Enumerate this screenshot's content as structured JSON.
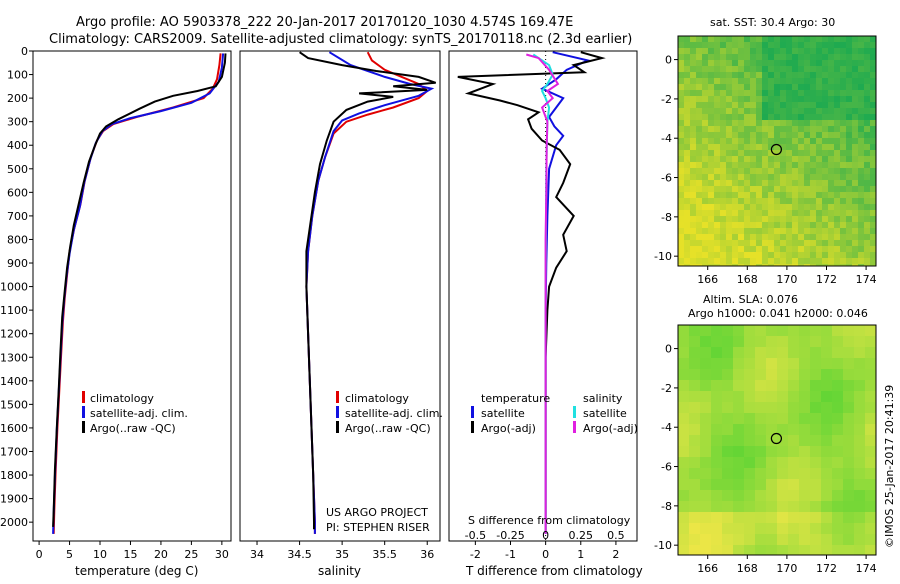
{
  "header": {
    "line1": "Argo profile: AO 5903378_222 20-Jan-2017 20170120_1030 4.574S 169.47E",
    "line2": "Climatology: CARS2009. Satellite-adjusted climatology: synTS_20170118.nc (2.3d earlier)"
  },
  "colors": {
    "clim": "#e00000",
    "sat": "#1010e0",
    "argo": "#000000",
    "sat_sal": "#20e0e0",
    "argo_sal": "#e020e0"
  },
  "chart_data": [
    {
      "type": "line",
      "id": "temperature",
      "xlabel": "temperature (deg C)",
      "ylabel": "depth",
      "xlim": [
        -1,
        31.5
      ],
      "ylim": [
        2080,
        0
      ],
      "xticks": [
        0,
        5,
        10,
        15,
        20,
        25,
        30
      ],
      "yticks": [
        0,
        100,
        200,
        300,
        400,
        500,
        600,
        700,
        800,
        900,
        1000,
        1100,
        1200,
        1300,
        1400,
        1500,
        1600,
        1700,
        1800,
        1900,
        2000
      ],
      "legend": [
        "climatology",
        "satellite-adj. clim.",
        "Argo(..raw -QC)"
      ],
      "series": [
        {
          "name": "climatology",
          "color": "clim",
          "points": [
            [
              29.8,
              10
            ],
            [
              29.6,
              60
            ],
            [
              29.2,
              120
            ],
            [
              28.5,
              160
            ],
            [
              27,
              200
            ],
            [
              22,
              240
            ],
            [
              16,
              280
            ],
            [
              12.2,
              310
            ],
            [
              10.5,
              340
            ],
            [
              9.5,
              380
            ],
            [
              8.5,
              450
            ],
            [
              7.5,
              550
            ],
            [
              6.8,
              650
            ],
            [
              5.8,
              750
            ],
            [
              5,
              850
            ],
            [
              4.6,
              950
            ],
            [
              4.2,
              1050
            ],
            [
              3.9,
              1150
            ],
            [
              3.6,
              1300
            ],
            [
              3.3,
              1450
            ],
            [
              3,
              1600
            ],
            [
              2.7,
              1800
            ],
            [
              2.5,
              1950
            ],
            [
              2.4,
              2050
            ]
          ]
        },
        {
          "name": "satellite-adj. clim.",
          "color": "sat",
          "points": [
            [
              30.2,
              10
            ],
            [
              30,
              70
            ],
            [
              29.5,
              130
            ],
            [
              28,
              180
            ],
            [
              25,
              220
            ],
            [
              20,
              255
            ],
            [
              15,
              285
            ],
            [
              12,
              310
            ],
            [
              10.4,
              340
            ],
            [
              9.3,
              390
            ],
            [
              8.4,
              460
            ],
            [
              7.4,
              560
            ],
            [
              6.7,
              660
            ],
            [
              5.7,
              760
            ],
            [
              5,
              860
            ],
            [
              4.5,
              960
            ],
            [
              4.1,
              1060
            ],
            [
              3.8,
              1160
            ],
            [
              3.5,
              1310
            ],
            [
              3.2,
              1460
            ],
            [
              2.9,
              1610
            ],
            [
              2.6,
              1810
            ],
            [
              2.4,
              1960
            ],
            [
              2.3,
              2050
            ]
          ]
        },
        {
          "name": "Argo(..raw -QC)",
          "color": "argo",
          "points": [
            [
              30.6,
              10
            ],
            [
              30.5,
              50
            ],
            [
              30,
              110
            ],
            [
              29,
              150
            ],
            [
              26,
              170
            ],
            [
              22,
              190
            ],
            [
              19,
              215
            ],
            [
              16.5,
              245
            ],
            [
              13,
              290
            ],
            [
              11,
              320
            ],
            [
              10,
              350
            ],
            [
              9.2,
              400
            ],
            [
              8.2,
              470
            ],
            [
              7.3,
              560
            ],
            [
              6.5,
              650
            ],
            [
              5.7,
              740
            ],
            [
              5.1,
              830
            ],
            [
              4.6,
              920
            ],
            [
              4.2,
              1020
            ],
            [
              3.8,
              1130
            ],
            [
              3.5,
              1280
            ],
            [
              3.2,
              1450
            ],
            [
              2.9,
              1600
            ],
            [
              2.6,
              1780
            ],
            [
              2.4,
              1950
            ],
            [
              2.3,
              2020
            ]
          ]
        }
      ]
    },
    {
      "type": "line",
      "id": "salinity",
      "xlabel": "salinity",
      "xlim": [
        33.8,
        36.15
      ],
      "ylim": [
        2080,
        0
      ],
      "xticks": [
        34,
        34.5,
        35,
        35.5,
        36
      ],
      "xtick_labels": [
        "34",
        "34.5",
        "35",
        "35.5",
        "36"
      ],
      "legend": [
        "climatology",
        "satellite-adj. clim.",
        "Argo(..raw -QC)"
      ],
      "credit1": "US ARGO PROJECT",
      "credit2": "PI: STEPHEN RISER",
      "series": [
        {
          "name": "climatology",
          "color": "clim",
          "points": [
            [
              35.3,
              5
            ],
            [
              35.35,
              40
            ],
            [
              35.5,
              80
            ],
            [
              35.7,
              110
            ],
            [
              35.9,
              140
            ],
            [
              36,
              170
            ],
            [
              35.9,
              200
            ],
            [
              35.6,
              240
            ],
            [
              35.3,
              270
            ],
            [
              35.05,
              300
            ],
            [
              34.9,
              350
            ],
            [
              34.8,
              450
            ],
            [
              34.72,
              550
            ],
            [
              34.65,
              700
            ],
            [
              34.6,
              850
            ],
            [
              34.58,
              1000
            ],
            [
              34.6,
              1200
            ],
            [
              34.62,
              1400
            ],
            [
              34.64,
              1600
            ],
            [
              34.66,
              1800
            ],
            [
              34.68,
              2000
            ],
            [
              34.68,
              2050
            ]
          ]
        },
        {
          "name": "satellite-adj. clim.",
          "color": "sat",
          "points": [
            [
              34.85,
              5
            ],
            [
              35.1,
              60
            ],
            [
              35.5,
              110
            ],
            [
              35.8,
              140
            ],
            [
              36.05,
              160
            ],
            [
              35.9,
              190
            ],
            [
              35.5,
              230
            ],
            [
              35.2,
              265
            ],
            [
              35,
              295
            ],
            [
              34.9,
              340
            ],
            [
              34.8,
              450
            ],
            [
              34.72,
              550
            ],
            [
              34.65,
              700
            ],
            [
              34.6,
              850
            ],
            [
              34.58,
              1000
            ],
            [
              34.6,
              1200
            ],
            [
              34.62,
              1400
            ],
            [
              34.64,
              1600
            ],
            [
              34.66,
              1800
            ],
            [
              34.68,
              2000
            ],
            [
              34.68,
              2050
            ]
          ]
        },
        {
          "name": "Argo(..raw -QC)",
          "color": "argo",
          "points": [
            [
              34.5,
              5
            ],
            [
              34.6,
              30
            ],
            [
              35,
              60
            ],
            [
              35.4,
              85
            ],
            [
              35.9,
              110
            ],
            [
              36.1,
              135
            ],
            [
              35.6,
              150
            ],
            [
              36,
              165
            ],
            [
              35.2,
              180
            ],
            [
              35.6,
              195
            ],
            [
              35.3,
              215
            ],
            [
              35.05,
              250
            ],
            [
              34.9,
              300
            ],
            [
              34.82,
              380
            ],
            [
              34.74,
              480
            ],
            [
              34.68,
              600
            ],
            [
              34.62,
              750
            ],
            [
              34.58,
              850
            ],
            [
              34.58,
              1000
            ],
            [
              34.6,
              1200
            ],
            [
              34.62,
              1400
            ],
            [
              34.64,
              1600
            ],
            [
              34.66,
              1800
            ],
            [
              34.67,
              2000
            ],
            [
              34.67,
              2030
            ]
          ]
        }
      ]
    },
    {
      "type": "line",
      "id": "difference",
      "xlabel": "T difference from climatology",
      "xlabel_top": "S difference from climatology",
      "xlim": [
        -2.75,
        2.6
      ],
      "ylim": [
        2080,
        0
      ],
      "xticks": [
        -2,
        -1,
        0,
        1,
        2
      ],
      "xticks_s": [
        [
          -0.5,
          "-0.5"
        ],
        [
          -0.25,
          "-0.25"
        ],
        [
          0,
          "0"
        ],
        [
          0.25,
          "0.25"
        ],
        [
          0.5,
          "0.5"
        ]
      ],
      "legend_t_title": "temperature",
      "legend_s_title": "salinity",
      "legend_t": [
        "satellite",
        "Argo(-adj)"
      ],
      "legend_s": [
        "satellite",
        "Argo(-adj)"
      ],
      "series": [
        {
          "name": "T satellite",
          "color": "sat",
          "points": [
            [
              0.2,
              5
            ],
            [
              1.2,
              40
            ],
            [
              0.6,
              80
            ],
            [
              0.3,
              120
            ],
            [
              -0.1,
              160
            ],
            [
              0.5,
              200
            ],
            [
              0.3,
              240
            ],
            [
              0.1,
              280
            ],
            [
              0.25,
              320
            ],
            [
              0.5,
              360
            ],
            [
              0.3,
              400
            ],
            [
              0.1,
              500
            ],
            [
              0.05,
              700
            ],
            [
              0.02,
              900
            ],
            [
              0,
              1100
            ],
            [
              0,
              1300
            ],
            [
              0,
              1600
            ],
            [
              0,
              2000
            ],
            [
              0,
              2050
            ]
          ]
        },
        {
          "name": "T Argo(-adj)",
          "color": "argo",
          "points": [
            [
              1.0,
              5
            ],
            [
              1.6,
              30
            ],
            [
              0.8,
              60
            ],
            [
              1.1,
              90
            ],
            [
              -2.5,
              110
            ],
            [
              -1.5,
              140
            ],
            [
              -2.2,
              180
            ],
            [
              -1.3,
              210
            ],
            [
              -0.8,
              230
            ],
            [
              -0.2,
              260
            ],
            [
              -0.5,
              290
            ],
            [
              -0.4,
              330
            ],
            [
              -0.1,
              380
            ],
            [
              0.4,
              420
            ],
            [
              0.7,
              480
            ],
            [
              0.5,
              560
            ],
            [
              0.3,
              620
            ],
            [
              0.8,
              700
            ],
            [
              0.5,
              780
            ],
            [
              0.6,
              850
            ],
            [
              0.3,
              920
            ],
            [
              0.1,
              1000
            ],
            [
              0.05,
              1100
            ],
            [
              0,
              1300
            ],
            [
              0,
              1600
            ],
            [
              0,
              2000
            ],
            [
              0,
              2050
            ]
          ]
        },
        {
          "name": "S satellite",
          "color": "sat_sal",
          "points": [
            [
              -0.35,
              15
            ],
            [
              0.1,
              60
            ],
            [
              0.2,
              100
            ],
            [
              0.05,
              140
            ],
            [
              -0.1,
              170
            ],
            [
              0,
              200
            ],
            [
              0.1,
              240
            ],
            [
              0.05,
              300
            ],
            [
              0.02,
              500
            ],
            [
              0,
              1000
            ],
            [
              0,
              2000
            ],
            [
              0,
              2050
            ]
          ]
        },
        {
          "name": "S Argo(-adj)",
          "color": "argo_sal",
          "points": [
            [
              -0.55,
              15
            ],
            [
              -0.2,
              30
            ],
            [
              0.1,
              80
            ],
            [
              0.35,
              140
            ],
            [
              0.05,
              170
            ],
            [
              0.2,
              200
            ],
            [
              -0.1,
              240
            ],
            [
              0.05,
              300
            ],
            [
              0.03,
              400
            ],
            [
              0.02,
              600
            ],
            [
              0,
              800
            ],
            [
              0,
              1200
            ],
            [
              0,
              2000
            ],
            [
              0,
              2050
            ]
          ]
        }
      ]
    },
    {
      "type": "heatmap",
      "id": "sst_map",
      "title": "sat. SST: 30.4 Argo: 30",
      "xlim": [
        164.5,
        174.5
      ],
      "ylim": [
        -10.5,
        1.2
      ],
      "xticks": [
        166,
        168,
        170,
        172,
        174
      ],
      "yticks": [
        0,
        -2,
        -4,
        -6,
        -8,
        -10
      ],
      "marker": [
        169.47,
        -4.574
      ]
    },
    {
      "type": "heatmap",
      "id": "sla_map",
      "title1": "Altim. SLA: 0.076",
      "title2": "Argo h1000: 0.041 h2000: 0.046",
      "xlim": [
        164.5,
        174.5
      ],
      "ylim": [
        -10.5,
        1.2
      ],
      "xticks": [
        166,
        168,
        170,
        172,
        174
      ],
      "yticks": [
        0,
        -2,
        -4,
        -6,
        -8,
        -10
      ],
      "marker": [
        169.47,
        -4.574
      ]
    }
  ],
  "footer": {
    "credit": "©IMOS 25-Jan-2017 20:41:39"
  }
}
